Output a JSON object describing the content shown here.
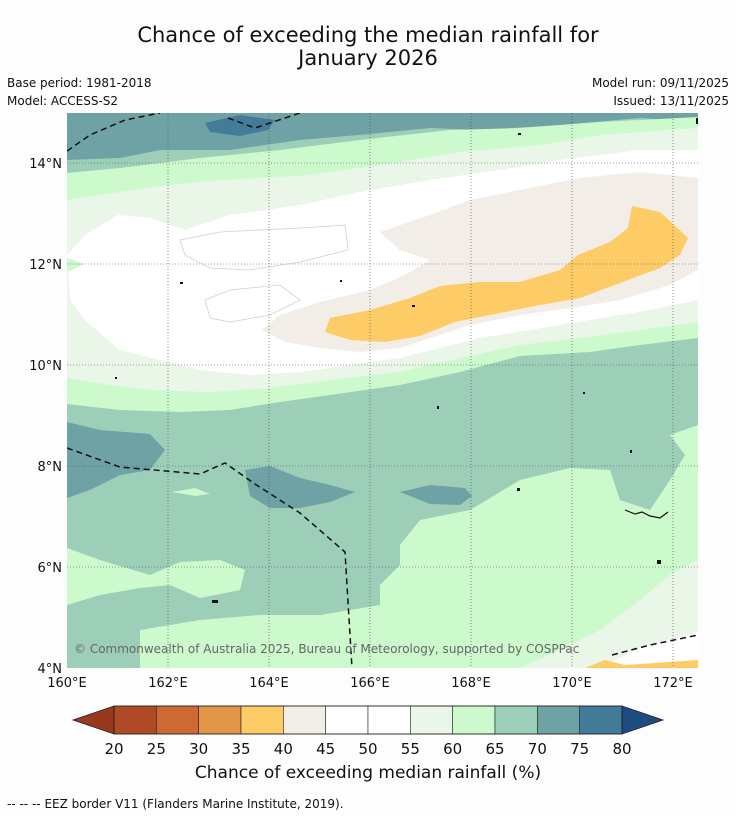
{
  "title": {
    "line1": "Chance of exceeding the median rainfall for",
    "line2": "January 2026"
  },
  "meta": {
    "base_period": "Base period: 1981-2018",
    "model": "Model: ACCESS-S2",
    "model_run": "Model run: 09/11/2025",
    "issued": "Issued: 13/11/2025"
  },
  "map": {
    "lat_labels": [
      "14°N",
      "12°N",
      "10°N",
      "8°N",
      "6°N",
      "4°N"
    ],
    "lon_labels": [
      "160°E",
      "162°E",
      "164°E",
      "166°E",
      "168°E",
      "170°E",
      "172°E"
    ],
    "copyright": "© Commonwealth of Australia 2025, Bureau of Meteorology, supported by COSPPac"
  },
  "colorbar": {
    "ticks": [
      "20",
      "25",
      "30",
      "35",
      "40",
      "45",
      "50",
      "55",
      "60",
      "65",
      "70",
      "75",
      "80"
    ],
    "colors": [
      "#b04a26",
      "#cf6934",
      "#e29648",
      "#fdcc66",
      "#f2ede6",
      "#ffffff",
      "#ffffff",
      "#eaf6e8",
      "#ccfacc",
      "#9dcfb8",
      "#6fa2a4",
      "#437b99"
    ],
    "low_color": "#96391d",
    "high_color": "#1c4c80",
    "label": "Chance of exceeding median rainfall (%)"
  },
  "footer": {
    "legend_dash": "-- -- --",
    "legend_text": "EEZ border V11 (Flanders Marine Institute, 2019)."
  }
}
